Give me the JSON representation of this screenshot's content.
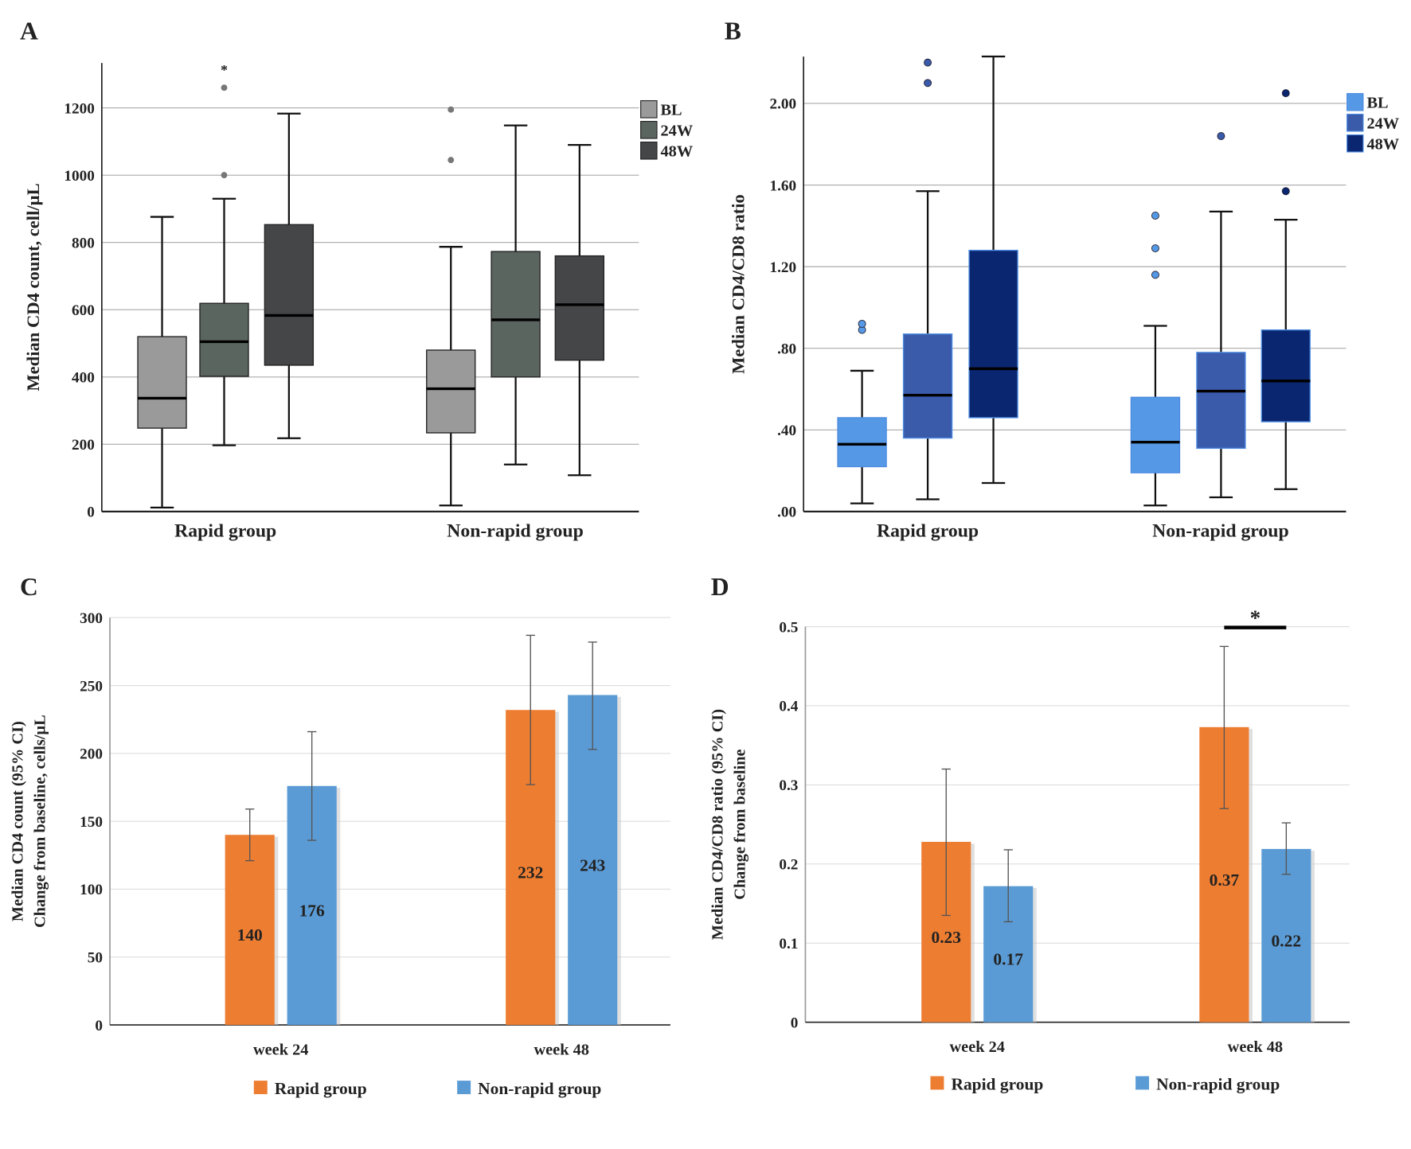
{
  "chart_data": [
    {
      "panel": "A",
      "type": "box",
      "ylabel": "Median CD4 count, cell/µL",
      "ylim": [
        0,
        1333
      ],
      "yticks": [
        0,
        200,
        400,
        600,
        800,
        1000,
        1200
      ],
      "ytick_labels": [
        "0",
        "200",
        "400",
        "600",
        "800",
        "1000",
        "1200"
      ],
      "grid": true,
      "legend_placement": "top-right",
      "categories": [
        "Rapid group",
        "Non-rapid group"
      ],
      "series": [
        {
          "name": "BL",
          "color": "#9a9a9a",
          "boxes": [
            {
              "min": 12,
              "q1": 248,
              "median": 337,
              "q3": 520,
              "max": 876,
              "outliers": [],
              "extremes": []
            },
            {
              "min": 18,
              "q1": 234,
              "median": 365,
              "q3": 480,
              "max": 787,
              "outliers": [
                1045,
                1195
              ],
              "extremes": []
            }
          ]
        },
        {
          "name": "24W",
          "color": "#5b6560",
          "boxes": [
            {
              "min": 197,
              "q1": 402,
              "median": 505,
              "q3": 619,
              "max": 930,
              "outliers": [
                1000,
                1260
              ],
              "extremes": [
                1320
              ]
            },
            {
              "min": 140,
              "q1": 400,
              "median": 570,
              "q3": 773,
              "max": 1148,
              "outliers": [],
              "extremes": []
            }
          ]
        },
        {
          "name": "48W",
          "color": "#454647",
          "boxes": [
            {
              "min": 218,
              "q1": 435,
              "median": 583,
              "q3": 853,
              "max": 1183,
              "outliers": [],
              "extremes": []
            },
            {
              "min": 108,
              "q1": 450,
              "median": 615,
              "q3": 760,
              "max": 1090,
              "outliers": [],
              "extremes": []
            }
          ]
        }
      ]
    },
    {
      "panel": "B",
      "type": "box",
      "ylabel": "Median CD4/CD8 ratio",
      "ylim": [
        0,
        2.23
      ],
      "yticks": [
        0,
        0.4,
        0.8,
        1.2,
        1.6,
        2.0
      ],
      "ytick_labels": [
        ".00",
        ".40",
        ".80",
        "1.20",
        "1.60",
        "2.00"
      ],
      "grid": true,
      "legend_placement": "top-right",
      "categories": [
        "Rapid group",
        "Non-rapid group"
      ],
      "series": [
        {
          "name": "BL",
          "color": "#5599e6",
          "boxes": [
            {
              "min": 0.04,
              "q1": 0.22,
              "median": 0.33,
              "q3": 0.46,
              "max": 0.69,
              "outliers": [
                0.89,
                0.92
              ],
              "extremes": []
            },
            {
              "min": 0.03,
              "q1": 0.19,
              "median": 0.34,
              "q3": 0.56,
              "max": 0.91,
              "outliers": [
                1.16,
                1.29,
                1.45
              ],
              "extremes": []
            }
          ]
        },
        {
          "name": "24W",
          "color": "#3a5aaa",
          "boxes": [
            {
              "min": 0.06,
              "q1": 0.36,
              "median": 0.57,
              "q3": 0.87,
              "max": 1.57,
              "outliers": [
                2.1,
                2.2
              ],
              "extremes": []
            },
            {
              "min": 0.07,
              "q1": 0.31,
              "median": 0.59,
              "q3": 0.78,
              "max": 1.47,
              "outliers": [
                1.84
              ],
              "extremes": []
            }
          ]
        },
        {
          "name": "48W",
          "color": "#0a2670",
          "boxes": [
            {
              "min": 0.14,
              "q1": 0.46,
              "median": 0.7,
              "q3": 1.28,
              "max": 2.23,
              "outliers": [],
              "extremes": []
            },
            {
              "min": 0.11,
              "q1": 0.44,
              "median": 0.64,
              "q3": 0.89,
              "max": 1.43,
              "outliers": [
                1.57,
                2.05
              ],
              "extremes": []
            }
          ]
        }
      ]
    },
    {
      "panel": "C",
      "type": "bar",
      "ylabel": "Median CD4 count (95% CI)",
      "ylabel2": "Change from baseline, cells/µL",
      "ylim": [
        0,
        300
      ],
      "yticks": [
        0,
        50,
        100,
        150,
        200,
        250,
        300
      ],
      "ytick_labels": [
        "0",
        "50",
        "100",
        "150",
        "200",
        "250",
        "300"
      ],
      "grid": true,
      "legend_placement": "bottom",
      "categories": [
        "week 24",
        "week 48"
      ],
      "series": [
        {
          "name": "Rapid group",
          "color": "#ed7d31",
          "values": [
            140,
            232
          ],
          "labels": [
            "140",
            "232"
          ],
          "ci": [
            [
              121,
              159
            ],
            [
              177,
              287
            ]
          ]
        },
        {
          "name": "Non-rapid group",
          "color": "#5b9bd5",
          "values": [
            176,
            243
          ],
          "labels": [
            "176",
            "243"
          ],
          "ci": [
            [
              136,
              216
            ],
            [
              203,
              282
            ]
          ]
        }
      ]
    },
    {
      "panel": "D",
      "type": "bar",
      "ylabel": "Median CD4/CD8 ratio (95% CI)",
      "ylabel2": "Change from baseline",
      "ylim": [
        0,
        0.5
      ],
      "yticks": [
        0,
        0.1,
        0.2,
        0.3,
        0.4,
        0.5
      ],
      "ytick_labels": [
        "0",
        "0.1",
        "0.2",
        "0.3",
        "0.4",
        "0.5"
      ],
      "grid": true,
      "legend_placement": "bottom",
      "categories": [
        "week 24",
        "week 48"
      ],
      "series": [
        {
          "name": "Rapid group",
          "color": "#ed7d31",
          "values": [
            0.228,
            0.373
          ],
          "labels": [
            "0.23",
            "0.37"
          ],
          "ci": [
            [
              0.135,
              0.32
            ],
            [
              0.27,
              0.475
            ]
          ]
        },
        {
          "name": "Non-rapid group",
          "color": "#5b9bd5",
          "values": [
            0.172,
            0.219
          ],
          "labels": [
            "0.17",
            "0.22"
          ],
          "ci": [
            [
              0.127,
              0.218
            ],
            [
              0.187,
              0.252
            ]
          ]
        }
      ],
      "significance": {
        "category": "week 48",
        "symbol": "*"
      }
    }
  ]
}
